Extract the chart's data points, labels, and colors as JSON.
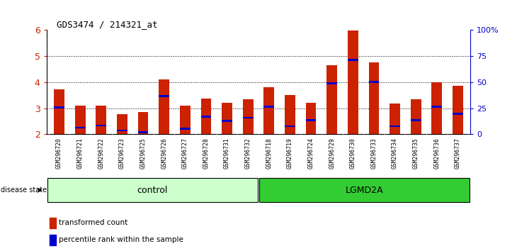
{
  "title": "GDS3474 / 214321_at",
  "samples": [
    "GSM296720",
    "GSM296721",
    "GSM296722",
    "GSM296723",
    "GSM296725",
    "GSM296726",
    "GSM296727",
    "GSM296728",
    "GSM296731",
    "GSM296732",
    "GSM296718",
    "GSM296719",
    "GSM296724",
    "GSM296729",
    "GSM296730",
    "GSM296733",
    "GSM296734",
    "GSM296735",
    "GSM296736",
    "GSM296737"
  ],
  "transformed_count": [
    3.72,
    3.1,
    3.1,
    2.78,
    2.85,
    4.12,
    3.1,
    3.38,
    3.22,
    3.35,
    3.82,
    3.5,
    3.22,
    4.65,
    5.98,
    4.75,
    3.18,
    3.35,
    4.0,
    3.85
  ],
  "percentile_bottom": [
    3.0,
    2.22,
    2.3,
    2.12,
    2.05,
    3.42,
    2.18,
    2.65,
    2.48,
    2.6,
    3.03,
    2.27,
    2.5,
    3.93,
    4.82,
    3.98,
    2.28,
    2.5,
    3.03,
    2.75
  ],
  "percentile_top": [
    3.07,
    2.28,
    2.37,
    2.18,
    2.11,
    3.5,
    2.25,
    2.72,
    2.55,
    2.67,
    3.1,
    2.33,
    2.57,
    4.0,
    4.9,
    4.05,
    2.35,
    2.57,
    3.1,
    2.82
  ],
  "control_count": 10,
  "lgmd2a_count": 10,
  "ylim": [
    2.0,
    6.0
  ],
  "yticks": [
    2,
    3,
    4,
    5,
    6
  ],
  "bar_color": "#cc2200",
  "percentile_color": "#0000cc",
  "bar_bottom": 2.0,
  "background_color": "#ffffff",
  "tick_area_color": "#c8c8c8",
  "right_yticks": [
    0,
    25,
    50,
    75,
    100
  ],
  "right_ylabels": [
    "0",
    "25",
    "50",
    "75",
    "100%"
  ],
  "control_fill": "#ccffcc",
  "lgmd2a_fill": "#33cc33"
}
